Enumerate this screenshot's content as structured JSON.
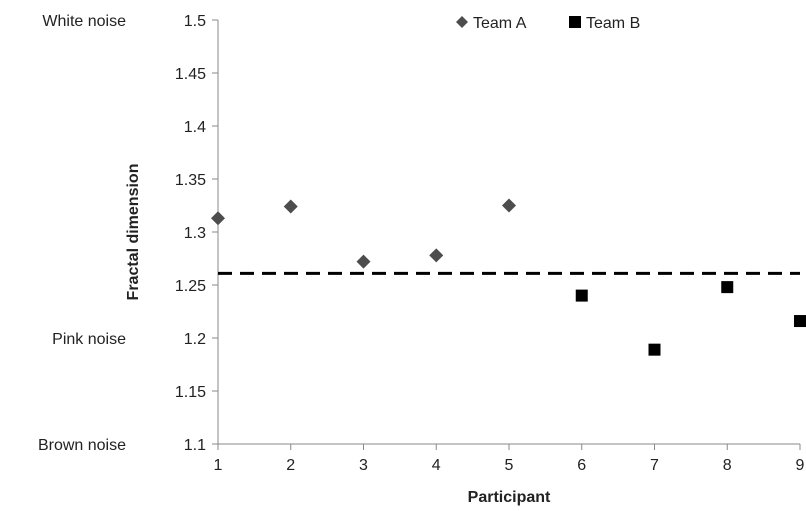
{
  "chart_data": {
    "type": "scatter",
    "title": "",
    "xlabel": "Participant",
    "ylabel": "Fractal dimension",
    "xlim": [
      1,
      9
    ],
    "ylim": [
      1.1,
      1.5
    ],
    "x_ticks": [
      "1",
      "2",
      "3",
      "4",
      "5",
      "6",
      "7",
      "8",
      "9"
    ],
    "y_ticks": [
      "1.1",
      "1.15",
      "1.2",
      "1.25",
      "1.3",
      "1.35",
      "1.4",
      "1.45",
      "1.5"
    ],
    "grid": false,
    "legend_position": "top",
    "series": [
      {
        "name": "Team A",
        "marker": "diamond",
        "color": "#4d4d4d",
        "x": [
          1,
          2,
          3,
          4,
          5
        ],
        "y": [
          1.313,
          1.324,
          1.272,
          1.278,
          1.325
        ]
      },
      {
        "name": "Team B",
        "marker": "square",
        "color": "#000000",
        "x": [
          6,
          7,
          8,
          9
        ],
        "y": [
          1.24,
          1.189,
          1.248,
          1.216
        ]
      }
    ],
    "reference_line": {
      "y": 1.261,
      "style": "dashed",
      "color": "#000000"
    },
    "noise_labels": [
      {
        "text": "White noise",
        "y": 1.5
      },
      {
        "text": "Pink noise",
        "y": 1.2
      },
      {
        "text": "Brown noise",
        "y": 1.1
      }
    ]
  }
}
